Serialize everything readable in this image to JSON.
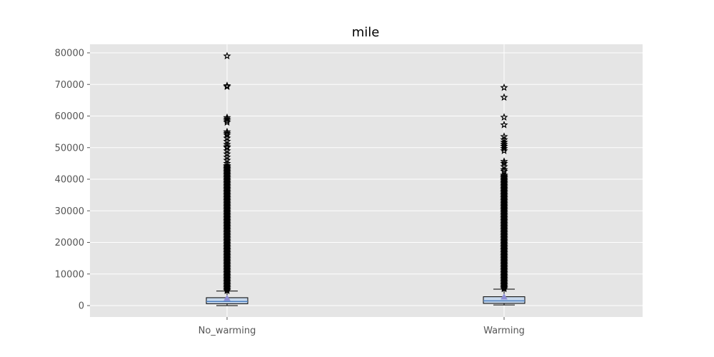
{
  "chart_data": {
    "type": "box",
    "title": "mile",
    "xlabel": "",
    "ylabel": "",
    "ylim": [
      -3500,
      82500
    ],
    "yticks": [
      0,
      10000,
      20000,
      30000,
      40000,
      50000,
      60000,
      70000,
      80000
    ],
    "ytick_labels": [
      "0",
      "10000",
      "20000",
      "30000",
      "40000",
      "50000",
      "60000",
      "70000",
      "80000"
    ],
    "grid": true,
    "categories": [
      "No_warming",
      "Warming"
    ],
    "boxes": [
      {
        "name": "No_warming",
        "whisker_low": 0,
        "q1": 600,
        "median": 1300,
        "q3": 2500,
        "whisker_high": 4600,
        "mean": 2300,
        "outliers_dense_from": 4700,
        "outliers_dense_to": 44500,
        "outliers": [
          45000,
          46000,
          47000,
          48000,
          49000,
          50000,
          50300,
          51000,
          52000,
          53000,
          54000,
          54500,
          55000,
          58000,
          58500,
          59000,
          59500,
          69300,
          69600,
          79000
        ]
      },
      {
        "name": "Warming",
        "whisker_low": 200,
        "q1": 700,
        "median": 1500,
        "q3": 2800,
        "whisker_high": 5200,
        "mean": 2700,
        "outliers_dense_from": 5300,
        "outliers_dense_to": 41500,
        "outliers": [
          42500,
          43000,
          44000,
          45000,
          45600,
          49000,
          49700,
          50400,
          51000,
          51700,
          52500,
          53500,
          57200,
          59600,
          65900,
          69000
        ]
      }
    ],
    "colors": {
      "background": "#e5e5e5",
      "grid": "#ffffff",
      "box_fill": "#c7d8ec",
      "box_edge": "#000000",
      "median": "#4c7fc0",
      "mean_marker": "#8f8fd6",
      "outlier_edge": "#000000"
    }
  }
}
